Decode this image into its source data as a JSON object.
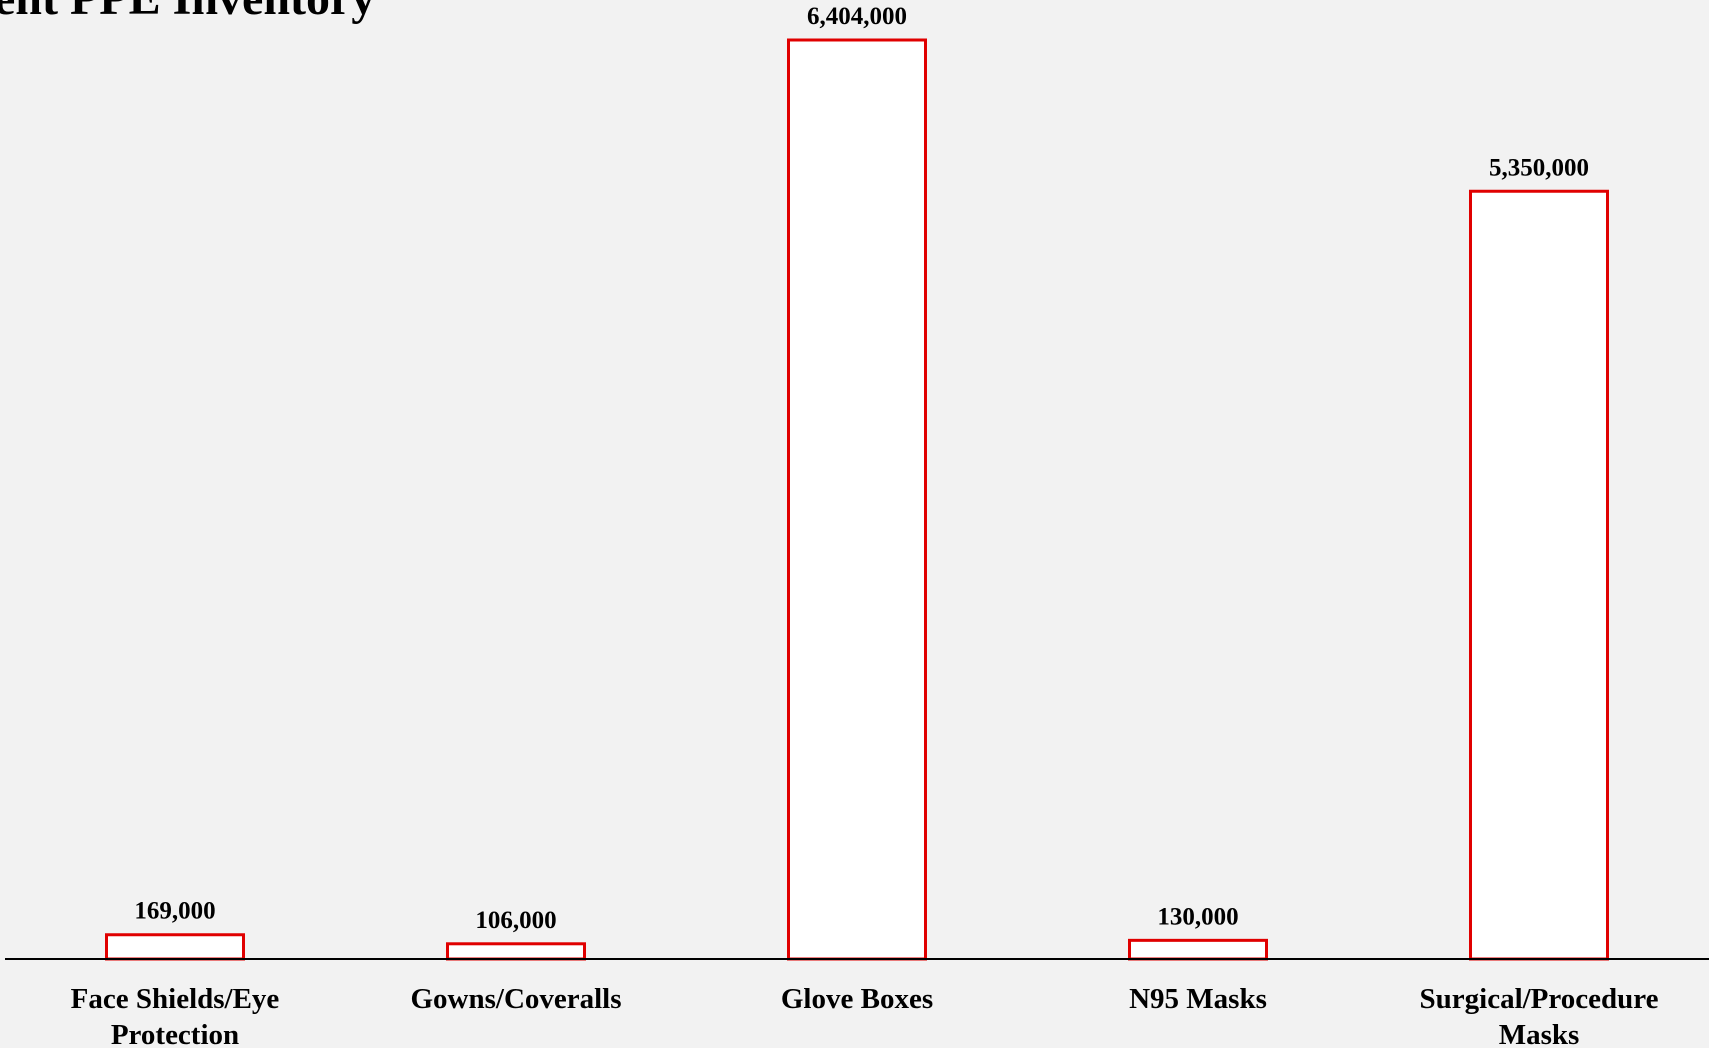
{
  "chart_data": {
    "type": "bar",
    "title": "ent PPE Inventory",
    "categories": [
      [
        "Face Shields/Eye",
        "Protection"
      ],
      [
        "Gowns/Coveralls"
      ],
      [
        "Glove Boxes"
      ],
      [
        "N95 Masks"
      ],
      [
        "Surgical/Procedure",
        "Masks"
      ]
    ],
    "values": [
      169000,
      106000,
      6404000,
      130000,
      5350000
    ],
    "data_labels": [
      "169,000",
      "106,000",
      "6,404,000",
      "130,000",
      "5,350,000"
    ],
    "xlabel": "",
    "ylabel": "",
    "ylim": [
      0,
      6404000
    ],
    "grid": false,
    "legend": "none",
    "colors": {
      "bar_fill": "#ffffff",
      "bar_border": "#e00000",
      "axis": "#000000",
      "background": "#f2f2f2"
    }
  }
}
